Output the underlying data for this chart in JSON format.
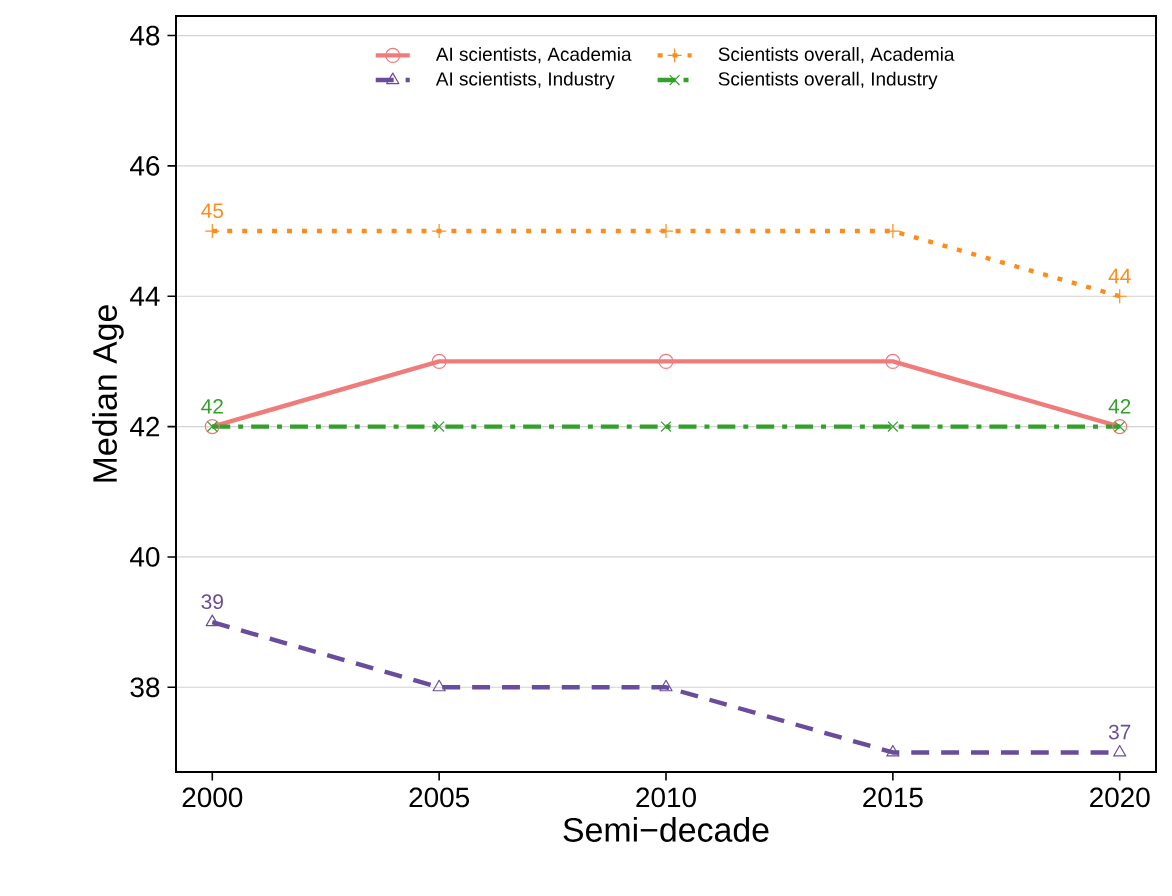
{
  "chart_data": {
    "type": "line",
    "xlabel": "Semi−decade",
    "ylabel": "Median Age",
    "x": [
      2000,
      2005,
      2010,
      2015,
      2020
    ],
    "series": [
      {
        "name": "AI scientists, Academia",
        "color": "#f07b7b",
        "values": [
          42,
          43,
          43,
          43,
          42
        ],
        "marker": "circle",
        "line_style": "solid"
      },
      {
        "name": "Scientists overall, Academia",
        "color": "#ff8c1a",
        "values": [
          45,
          45,
          45,
          45,
          44
        ],
        "marker": "plus",
        "line_style": "dotted",
        "value_labels": [
          "45",
          null,
          null,
          null,
          "44"
        ]
      },
      {
        "name": "AI scientists, Industry",
        "color": "#6a4c9c",
        "values": [
          39,
          38,
          38,
          37,
          37
        ],
        "marker": "triangle",
        "line_style": "dashed",
        "value_labels": [
          "39",
          null,
          null,
          null,
          "37"
        ]
      },
      {
        "name": "Scientists overall, Industry",
        "color": "#33a02c",
        "values": [
          42,
          42,
          42,
          42,
          42
        ],
        "marker": "cross",
        "line_style": "dashdot",
        "value_labels": [
          "42",
          null,
          null,
          null,
          "42"
        ]
      }
    ],
    "xlim": [
      1999.2,
      2020.8
    ],
    "ylim": [
      36.7,
      48.3
    ],
    "xticks": [
      2000,
      2005,
      2010,
      2015,
      2020
    ],
    "yticks": [
      38,
      40,
      42,
      44,
      46,
      48
    ],
    "grid": "y",
    "legend": "top"
  }
}
